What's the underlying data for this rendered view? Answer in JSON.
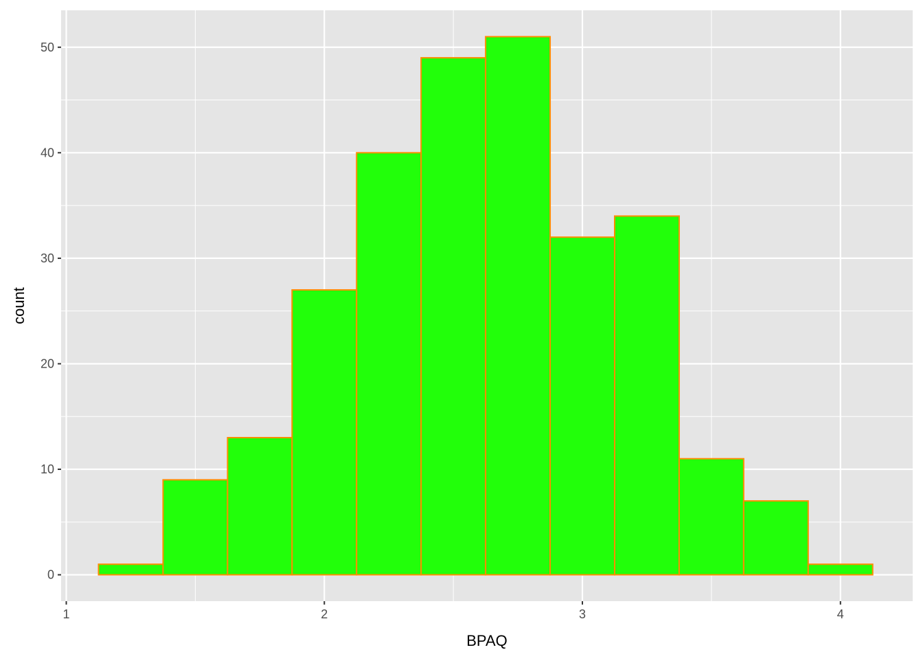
{
  "chart_data": {
    "type": "bar",
    "subtype": "histogram",
    "title": "",
    "xlabel": "BPAQ",
    "ylabel": "count",
    "bin_edges": [
      1.125,
      1.375,
      1.625,
      1.875,
      2.125,
      2.375,
      2.625,
      2.875,
      3.125,
      3.375,
      3.625,
      3.875,
      4.125
    ],
    "values": [
      1,
      9,
      13,
      27,
      40,
      49,
      51,
      32,
      34,
      11,
      7,
      1
    ],
    "xlim": [
      0.98,
      4.28
    ],
    "ylim": [
      -2.5,
      53.5
    ],
    "x_ticks": [
      "1",
      "2",
      "3",
      "4"
    ],
    "x_tick_values": [
      1,
      2,
      3,
      4
    ],
    "y_ticks": [
      "0",
      "10",
      "20",
      "30",
      "40",
      "50"
    ],
    "y_tick_values": [
      0,
      10,
      20,
      30,
      40,
      50
    ],
    "grid": true,
    "colors": {
      "fill": "#22FF0A",
      "outline": "#FF8C00",
      "panel": "#E5E5E5",
      "grid": "#FFFFFF"
    }
  }
}
